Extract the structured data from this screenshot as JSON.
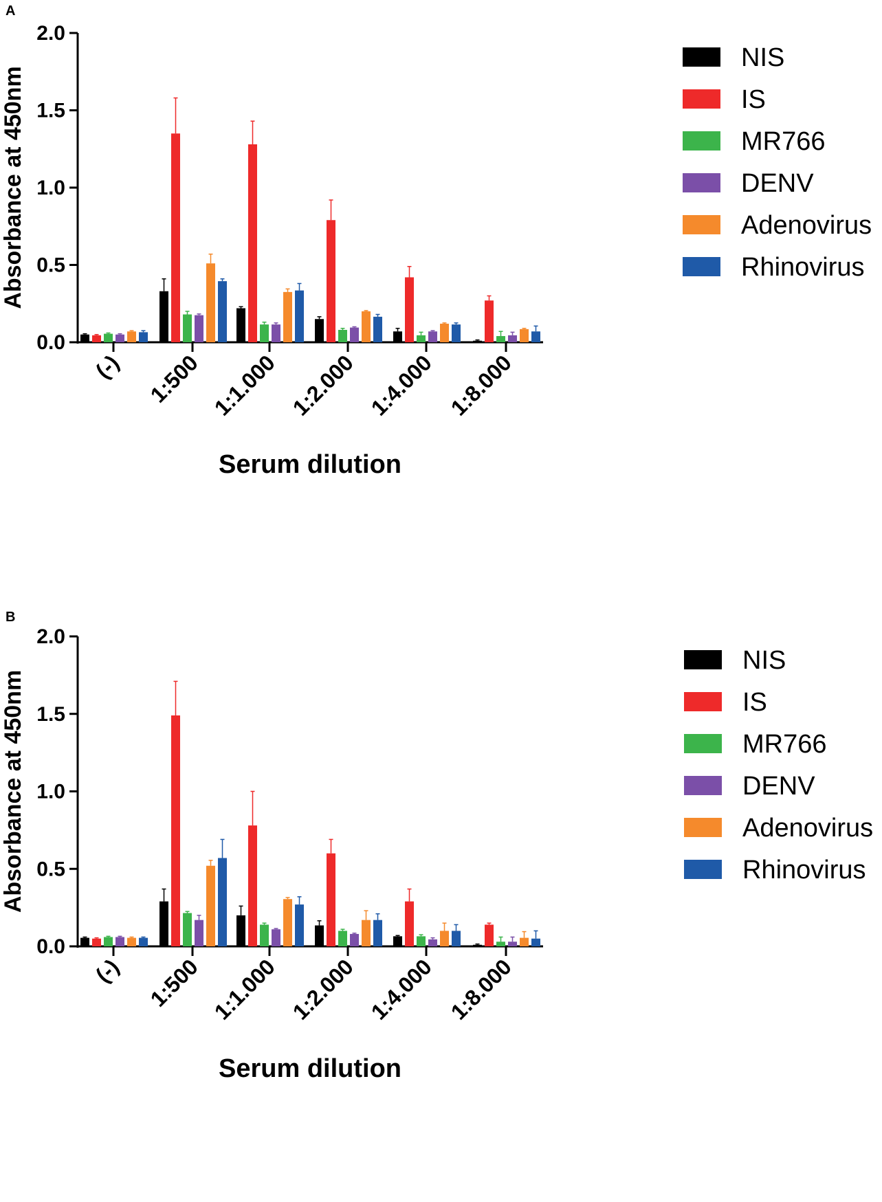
{
  "chart_data": [
    {
      "panel": "A",
      "type": "bar",
      "xlabel": "Serum dilution",
      "ylabel": "Absorbance at 450nm",
      "ylim": [
        0,
        2.0
      ],
      "yticks": [
        "0.0",
        "0.5",
        "1.0",
        "1.5",
        "2.0"
      ],
      "categories": [
        "(-)",
        "1:500",
        "1:1.000",
        "1:2.000",
        "1:4.000",
        "1:8.000"
      ],
      "series": [
        {
          "name": "NIS",
          "color": "#000000",
          "values": [
            0.05,
            0.33,
            0.22,
            0.15,
            0.07,
            0.01
          ],
          "errors": [
            0.005,
            0.08,
            0.01,
            0.015,
            0.02,
            0.005
          ]
        },
        {
          "name": "IS",
          "color": "#ee2a2a",
          "values": [
            0.045,
            1.35,
            1.28,
            0.79,
            0.42,
            0.27
          ],
          "errors": [
            0.005,
            0.23,
            0.15,
            0.13,
            0.07,
            0.03
          ]
        },
        {
          "name": "MR766",
          "color": "#3cb44b",
          "values": [
            0.055,
            0.18,
            0.115,
            0.08,
            0.045,
            0.04
          ],
          "errors": [
            0.005,
            0.02,
            0.015,
            0.01,
            0.02,
            0.03
          ]
        },
        {
          "name": "DENV",
          "color": "#7b4fa8",
          "values": [
            0.05,
            0.175,
            0.115,
            0.095,
            0.07,
            0.045
          ],
          "errors": [
            0.005,
            0.008,
            0.01,
            0.005,
            0.005,
            0.02
          ]
        },
        {
          "name": "Adenovirus",
          "color": "#f58a2c",
          "values": [
            0.07,
            0.51,
            0.325,
            0.2,
            0.12,
            0.085
          ],
          "errors": [
            0.005,
            0.06,
            0.02,
            0.005,
            0.005,
            0.005
          ]
        },
        {
          "name": "Rhinovirus",
          "color": "#1f5aa8",
          "values": [
            0.065,
            0.395,
            0.335,
            0.165,
            0.115,
            0.07
          ],
          "errors": [
            0.01,
            0.015,
            0.045,
            0.015,
            0.01,
            0.035
          ]
        }
      ]
    },
    {
      "panel": "B",
      "type": "bar",
      "xlabel": "Serum dilution",
      "ylabel": "Absorbance at 450nm",
      "ylim": [
        0,
        2.0
      ],
      "yticks": [
        "0.0",
        "0.5",
        "1.0",
        "1.5",
        "2.0"
      ],
      "categories": [
        "(-)",
        "1:500",
        "1:1.000",
        "1:2.000",
        "1:4.000",
        "1:8.000"
      ],
      "series": [
        {
          "name": "NIS",
          "color": "#000000",
          "values": [
            0.055,
            0.29,
            0.2,
            0.135,
            0.065,
            0.01
          ],
          "errors": [
            0.005,
            0.08,
            0.06,
            0.03,
            0.005,
            0.005
          ]
        },
        {
          "name": "IS",
          "color": "#ee2a2a",
          "values": [
            0.05,
            1.49,
            0.78,
            0.6,
            0.29,
            0.14
          ],
          "errors": [
            0.005,
            0.22,
            0.22,
            0.09,
            0.08,
            0.01
          ]
        },
        {
          "name": "MR766",
          "color": "#3cb44b",
          "values": [
            0.06,
            0.215,
            0.14,
            0.1,
            0.065,
            0.03
          ],
          "errors": [
            0.005,
            0.01,
            0.01,
            0.01,
            0.01,
            0.03
          ]
        },
        {
          "name": "DENV",
          "color": "#7b4fa8",
          "values": [
            0.06,
            0.17,
            0.11,
            0.08,
            0.045,
            0.03
          ],
          "errors": [
            0.005,
            0.03,
            0.005,
            0.005,
            0.01,
            0.03
          ]
        },
        {
          "name": "Adenovirus",
          "color": "#f58a2c",
          "values": [
            0.055,
            0.52,
            0.305,
            0.17,
            0.1,
            0.055
          ],
          "errors": [
            0.005,
            0.035,
            0.01,
            0.06,
            0.05,
            0.04
          ]
        },
        {
          "name": "Rhinovirus",
          "color": "#1f5aa8",
          "values": [
            0.055,
            0.57,
            0.27,
            0.17,
            0.1,
            0.05
          ],
          "errors": [
            0.005,
            0.12,
            0.05,
            0.04,
            0.04,
            0.05
          ]
        }
      ]
    }
  ]
}
